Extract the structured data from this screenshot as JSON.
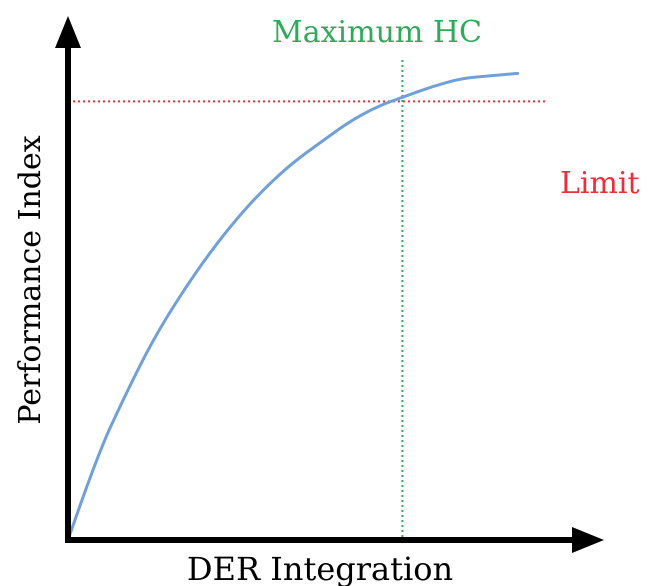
{
  "chart_data": {
    "type": "line",
    "title": "",
    "xlabel": "DER Integration",
    "ylabel": "Performance Index",
    "xlim": [
      0,
      1
    ],
    "ylim": [
      0,
      1
    ],
    "grid": false,
    "legend": "none",
    "axis_ticks": false,
    "series": [
      {
        "color": "#6fa0d8",
        "x": [
          0.0,
          0.05,
          0.1,
          0.15,
          0.2,
          0.25,
          0.3,
          0.35,
          0.4,
          0.45,
          0.5,
          0.55,
          0.6,
          0.65,
          0.7,
          0.75,
          0.8
        ],
        "y": [
          0.0,
          0.16,
          0.28,
          0.39,
          0.48,
          0.56,
          0.63,
          0.69,
          0.74,
          0.78,
          0.82,
          0.85,
          0.87,
          0.89,
          0.905,
          0.91,
          0.915
        ]
      }
    ],
    "reference_lines": [
      {
        "orientation": "horizontal",
        "value": 0.86,
        "label": "Limit",
        "color": "#e8303a",
        "style": "dotted"
      },
      {
        "orientation": "vertical",
        "value": 0.595,
        "label": "Maximum HC",
        "color": "#2eaa5a",
        "style": "dotted"
      }
    ],
    "axis_color": "#000000"
  }
}
